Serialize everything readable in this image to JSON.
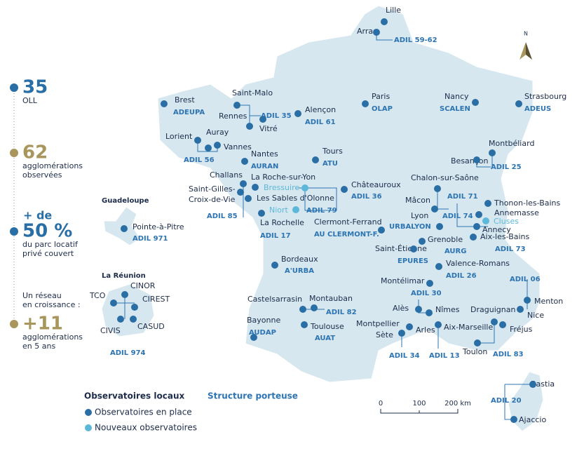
{
  "sidebar": [
    {
      "value": "35",
      "lines": [
        "OLL"
      ]
    },
    {
      "value": "62",
      "lines": [
        "agglomérations",
        "observées"
      ]
    },
    {
      "prefix": "+ de",
      "value": "50 %",
      "lines": [
        "du parc locatif",
        "privé couvert"
      ]
    },
    {
      "intro": [
        "Un réseau",
        "en croissance :"
      ],
      "value": "+11",
      "lines": [
        "agglomérations",
        "en 5 ans"
      ]
    }
  ],
  "map": {
    "north": "N",
    "labels": [
      {
        "text": "Lille",
        "kind": "city"
      },
      {
        "text": "Arras",
        "kind": "city"
      },
      {
        "text": "ADIL 59-62",
        "kind": "structure"
      },
      {
        "text": "Brest",
        "kind": "city"
      },
      {
        "text": "ADEUPA",
        "kind": "structure"
      },
      {
        "text": "Saint-Malo",
        "kind": "city"
      },
      {
        "text": "Rennes",
        "kind": "city"
      },
      {
        "text": "ADIL 35",
        "kind": "structure"
      },
      {
        "text": "Vitré",
        "kind": "city"
      },
      {
        "text": "Alençon",
        "kind": "city"
      },
      {
        "text": "ADIL 61",
        "kind": "structure"
      },
      {
        "text": "Paris",
        "kind": "city"
      },
      {
        "text": "OLAP",
        "kind": "structure"
      },
      {
        "text": "Nancy",
        "kind": "city"
      },
      {
        "text": "SCALEN",
        "kind": "structure"
      },
      {
        "text": "Strasbourg",
        "kind": "city"
      },
      {
        "text": "ADEUS",
        "kind": "structure"
      },
      {
        "text": "Lorient",
        "kind": "city"
      },
      {
        "text": "Auray",
        "kind": "city"
      },
      {
        "text": "Vannes",
        "kind": "city"
      },
      {
        "text": "ADIL 56",
        "kind": "structure"
      },
      {
        "text": "Nantes",
        "kind": "city"
      },
      {
        "text": "AURAN",
        "kind": "structure"
      },
      {
        "text": "Tours",
        "kind": "city"
      },
      {
        "text": "ATU",
        "kind": "structure"
      },
      {
        "text": "Montbéliard",
        "kind": "city"
      },
      {
        "text": "Besançon",
        "kind": "city"
      },
      {
        "text": "ADIL 25",
        "kind": "structure"
      },
      {
        "text": "Challans",
        "kind": "city"
      },
      {
        "text": "La Roche-sur-Yon",
        "kind": "city"
      },
      {
        "text": "Bressuire",
        "kind": "new"
      },
      {
        "text": "Saint-Gilles-",
        "kind": "city"
      },
      {
        "text": "Croix-de-Vie",
        "kind": "city"
      },
      {
        "text": "Les Sables d'Olonne",
        "kind": "city"
      },
      {
        "text": "Niort",
        "kind": "new"
      },
      {
        "text": "ADIL 79",
        "kind": "structure"
      },
      {
        "text": "ADIL 85",
        "kind": "structure"
      },
      {
        "text": "La Rochelle",
        "kind": "city"
      },
      {
        "text": "ADIL 17",
        "kind": "structure"
      },
      {
        "text": "Châteauroux",
        "kind": "city"
      },
      {
        "text": "ADIL 36",
        "kind": "structure"
      },
      {
        "text": "Chalon-sur-Saône",
        "kind": "city"
      },
      {
        "text": "ADIL 71",
        "kind": "structure"
      },
      {
        "text": "Mâcon",
        "kind": "city"
      },
      {
        "text": "Lyon",
        "kind": "city"
      },
      {
        "text": "Thonon-les-Bains",
        "kind": "city"
      },
      {
        "text": "Annemasse",
        "kind": "city"
      },
      {
        "text": "Cluses",
        "kind": "new"
      },
      {
        "text": "Annecy",
        "kind": "city"
      },
      {
        "text": "ADIL 74",
        "kind": "structure"
      },
      {
        "text": "Aix-les-Bains",
        "kind": "city"
      },
      {
        "text": "ADIL 73",
        "kind": "structure"
      },
      {
        "text": "Clermont-Ferrand",
        "kind": "city"
      },
      {
        "text": "AU CLERMONT-F.",
        "kind": "structure"
      },
      {
        "text": "URBALYON",
        "kind": "structure"
      },
      {
        "text": "Grenoble",
        "kind": "city"
      },
      {
        "text": "AURG",
        "kind": "structure"
      },
      {
        "text": "Saint-Étienne",
        "kind": "city"
      },
      {
        "text": "EPURES",
        "kind": "structure"
      },
      {
        "text": "Bordeaux",
        "kind": "city"
      },
      {
        "text": "A'URBA",
        "kind": "structure"
      },
      {
        "text": "Valence-Romans",
        "kind": "city"
      },
      {
        "text": "ADIL 26",
        "kind": "structure"
      },
      {
        "text": "Montélimar",
        "kind": "city"
      },
      {
        "text": "ADIL 30",
        "kind": "structure"
      },
      {
        "text": "Alès",
        "kind": "city"
      },
      {
        "text": "Nîmes",
        "kind": "city"
      },
      {
        "text": "ADIL 06",
        "kind": "structure"
      },
      {
        "text": "Menton",
        "kind": "city"
      },
      {
        "text": "Nice",
        "kind": "city"
      },
      {
        "text": "Castelsarrasin",
        "kind": "city"
      },
      {
        "text": "Montauban",
        "kind": "city"
      },
      {
        "text": "ADIL 82",
        "kind": "structure"
      },
      {
        "text": "Bayonne",
        "kind": "city"
      },
      {
        "text": "AUDAP",
        "kind": "structure"
      },
      {
        "text": "Toulouse",
        "kind": "city"
      },
      {
        "text": "AUAT",
        "kind": "structure"
      },
      {
        "text": "Montpellier",
        "kind": "city"
      },
      {
        "text": "Sète",
        "kind": "city"
      },
      {
        "text": "ADIL 34",
        "kind": "structure"
      },
      {
        "text": "Arles",
        "kind": "city"
      },
      {
        "text": "Aix-Marseille",
        "kind": "city"
      },
      {
        "text": "ADIL 13",
        "kind": "structure"
      },
      {
        "text": "Draguignan",
        "kind": "city"
      },
      {
        "text": "Fréjus",
        "kind": "city"
      },
      {
        "text": "Toulon",
        "kind": "city"
      },
      {
        "text": "ADIL 83",
        "kind": "structure"
      },
      {
        "text": "Bastia",
        "kind": "city"
      },
      {
        "text": "ADIL 20",
        "kind": "structure"
      },
      {
        "text": "Ajaccio",
        "kind": "city"
      },
      {
        "text": "Guadeloupe",
        "kind": "region"
      },
      {
        "text": "Pointe-à-Pitre",
        "kind": "city"
      },
      {
        "text": "ADIL 971",
        "kind": "structure"
      },
      {
        "text": "La Réunion",
        "kind": "region"
      },
      {
        "text": "CINOR",
        "kind": "city"
      },
      {
        "text": "CIREST",
        "kind": "city"
      },
      {
        "text": "TCO",
        "kind": "city"
      },
      {
        "text": "CIVIS",
        "kind": "city"
      },
      {
        "text": "CASUD",
        "kind": "city"
      },
      {
        "text": "ADIL 974",
        "kind": "structure"
      }
    ],
    "scale": [
      "0",
      "100",
      "200 km"
    ]
  },
  "legend": {
    "title": "Observatoires locaux",
    "items": [
      "Observatoires en place",
      "Nouveaux observatoires"
    ],
    "structure": "Structure porteuse"
  }
}
